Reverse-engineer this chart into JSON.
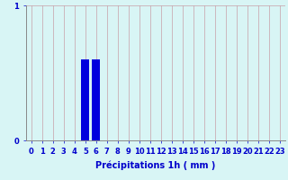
{
  "hours": [
    0,
    1,
    2,
    3,
    4,
    5,
    6,
    7,
    8,
    9,
    10,
    11,
    12,
    13,
    14,
    15,
    16,
    17,
    18,
    19,
    20,
    21,
    22,
    23
  ],
  "values": [
    0,
    0,
    0,
    0,
    0,
    0.6,
    0.6,
    0,
    0,
    0,
    0,
    0,
    0,
    0,
    0,
    0,
    0,
    0,
    0,
    0,
    0,
    0,
    0,
    0
  ],
  "bar_color": "#0000dd",
  "background_color": "#d8f5f5",
  "grid_color": "#c8a0a8",
  "text_color": "#0000cc",
  "xlabel": "Précipitations 1h ( mm )",
  "ylim": [
    0,
    1.0
  ],
  "yticks": [
    0,
    1
  ],
  "xlabel_fontsize": 7.0,
  "tick_fontsize": 6.0,
  "bar_width": 0.75
}
